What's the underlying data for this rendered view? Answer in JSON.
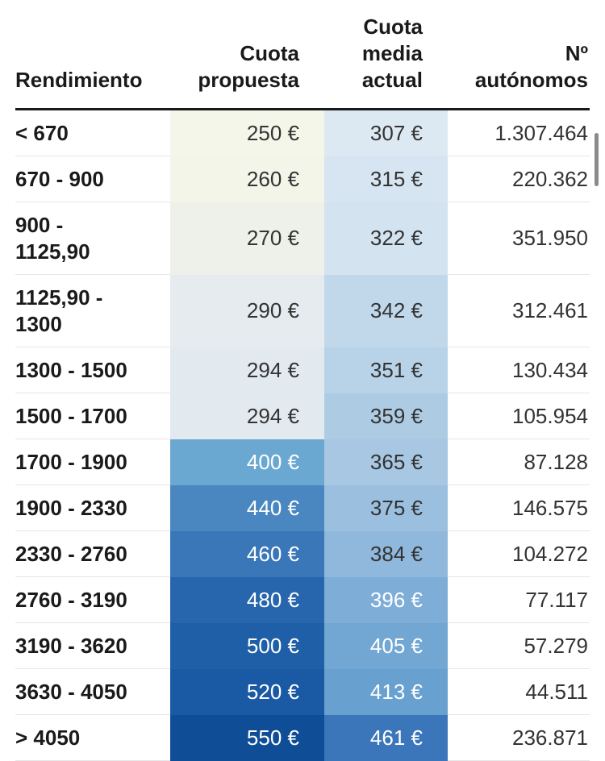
{
  "chart_data": {
    "type": "table",
    "columns": [
      "Rendimiento",
      "Cuota propuesta",
      "Cuota media actual",
      "Nº autónomos"
    ],
    "header_lines": {
      "rendimiento": [
        "Rendimiento"
      ],
      "cuota_propuesta": [
        "Cuota",
        "propuesta"
      ],
      "cuota_media_actual": [
        "Cuota",
        "media",
        "actual"
      ],
      "n_autonomos": [
        "Nº",
        "autónomos"
      ]
    },
    "rows": [
      {
        "range": [
          "< 670"
        ],
        "proposed": "250 €",
        "current": "307 €",
        "count": "1.307.464"
      },
      {
        "range": [
          "670 - 900"
        ],
        "proposed": "260 €",
        "current": "315 €",
        "count": "220.362"
      },
      {
        "range": [
          "900 -",
          "1125,90"
        ],
        "proposed": "270 €",
        "current": "322 €",
        "count": "351.950"
      },
      {
        "range": [
          "1125,90 -",
          "1300"
        ],
        "proposed": "290 €",
        "current": "342 €",
        "count": "312.461"
      },
      {
        "range": [
          "1300 - 1500"
        ],
        "proposed": "294 €",
        "current": "351 €",
        "count": "130.434"
      },
      {
        "range": [
          "1500 - 1700"
        ],
        "proposed": "294 €",
        "current": "359 €",
        "count": "105.954"
      },
      {
        "range": [
          "1700 - 1900"
        ],
        "proposed": "400 €",
        "current": "365 €",
        "count": "87.128"
      },
      {
        "range": [
          "1900 - 2330"
        ],
        "proposed": "440 €",
        "current": "375 €",
        "count": "146.575"
      },
      {
        "range": [
          "2330 - 2760"
        ],
        "proposed": "460 €",
        "current": "384 €",
        "count": "104.272"
      },
      {
        "range": [
          "2760 - 3190"
        ],
        "proposed": "480 €",
        "current": "396 €",
        "count": "77.117"
      },
      {
        "range": [
          "3190 - 3620"
        ],
        "proposed": "500 €",
        "current": "405 €",
        "count": "57.279"
      },
      {
        "range": [
          "3630 - 4050"
        ],
        "proposed": "520 €",
        "current": "413 €",
        "count": "44.511"
      },
      {
        "range": [
          "> 4050"
        ],
        "proposed": "550 €",
        "current": "461 €",
        "count": "236.871"
      }
    ],
    "cell_colors": {
      "proposed": [
        "#f5f6ea",
        "#f3f5e8",
        "#eef1e9",
        "#e5ebee",
        "#e2e9ef",
        "#e2e9ef",
        "#6aa8d2",
        "#4a87c1",
        "#3a77b8",
        "#2766ad",
        "#1f5fa8",
        "#1a59a4",
        "#0f4e97"
      ],
      "current": [
        "#dde9f2",
        "#d6e5f1",
        "#d3e3f0",
        "#c0d8ea",
        "#b8d3e8",
        "#aecbe4",
        "#a7c7e2",
        "#9bc0df",
        "#8fb8dc",
        "#7eaed7",
        "#72a7d3",
        "#68a0cf",
        "#3c76ba"
      ],
      "proposed_text": [
        "#333333",
        "#333333",
        "#333333",
        "#333333",
        "#333333",
        "#333333",
        "#ffffff",
        "#ffffff",
        "#ffffff",
        "#ffffff",
        "#ffffff",
        "#ffffff",
        "#ffffff"
      ],
      "current_text": [
        "#333333",
        "#333333",
        "#333333",
        "#333333",
        "#333333",
        "#333333",
        "#333333",
        "#333333",
        "#333333",
        "#ffffff",
        "#ffffff",
        "#ffffff",
        "#ffffff"
      ]
    }
  }
}
